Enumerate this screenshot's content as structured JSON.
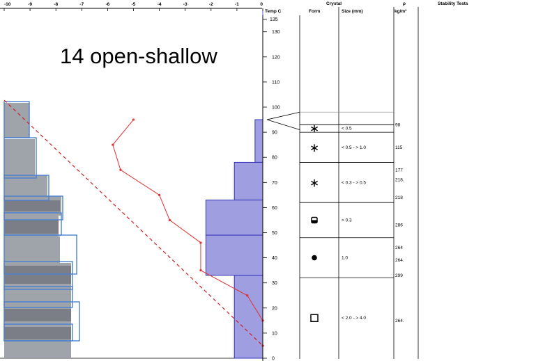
{
  "chart_data": {
    "type": "snow-profile",
    "title": "14 open-shallow",
    "temp_axis": {
      "ticks": [
        "-10",
        "-9",
        "-8",
        "-7",
        "-6",
        "-5",
        "-4",
        "-3",
        "-2",
        "-1",
        "0"
      ],
      "range": [
        -10,
        0
      ]
    },
    "height_axis": {
      "label": "Temp C",
      "ticks": [
        "0",
        "10",
        "20",
        "30",
        "40",
        "50",
        "60",
        "70",
        "80",
        "90",
        "100",
        "110",
        "120",
        "130",
        "135"
      ],
      "range": [
        0,
        137
      ]
    },
    "temperature_profile": [
      {
        "temp": -5.0,
        "height": 95
      },
      {
        "temp": -5.8,
        "height": 85
      },
      {
        "temp": -5.5,
        "height": 75
      },
      {
        "temp": -4.0,
        "height": 65
      },
      {
        "temp": -3.6,
        "height": 55
      },
      {
        "temp": -2.4,
        "height": 46
      },
      {
        "temp": -2.4,
        "height": 35
      },
      {
        "temp": -0.6,
        "height": 25
      },
      {
        "temp": 0.0,
        "height": 15
      },
      {
        "temp": 0.0,
        "height": 5
      }
    ],
    "hardness_layers": [
      {
        "top": 95,
        "bottom": 78,
        "hardness": -0.3
      },
      {
        "top": 78,
        "bottom": 63,
        "hardness": -1.1
      },
      {
        "top": 63,
        "bottom": 49,
        "hardness": -2.2
      },
      {
        "top": 49,
        "bottom": 33,
        "hardness": -2.2
      },
      {
        "top": 33,
        "bottom": 0,
        "hardness": -1.1
      }
    ],
    "density_column": {
      "header_symbol": "ρ",
      "header_unit": "kg/m³",
      "entries": [
        {
          "value": "98",
          "height": 93
        },
        {
          "value": "115",
          "height": 84
        },
        {
          "value": "177",
          "height": 75
        },
        {
          "value": "218.",
          "height": 71
        },
        {
          "value": "218",
          "height": 64
        },
        {
          "value": "286",
          "height": 53
        },
        {
          "value": "264",
          "height": 44
        },
        {
          "value": "264.",
          "height": 39
        },
        {
          "value": "299",
          "height": 33
        },
        {
          "value": "264.",
          "height": 15
        }
      ]
    },
    "crystal_table": {
      "header": "Crystal",
      "columns": [
        "Form",
        "Size (mm)"
      ],
      "layers": [
        {
          "top": 95,
          "bottom": 93,
          "form": "",
          "size": ""
        },
        {
          "top": 93,
          "bottom": 90,
          "form": "new-snow",
          "size": "< 0.5"
        },
        {
          "top": 90,
          "bottom": 78,
          "form": "new-snow",
          "size": "< 0.5 - > 1.0"
        },
        {
          "top": 78,
          "bottom": 62,
          "form": "new-snow",
          "size": "< 0.3 - > 0.5"
        },
        {
          "top": 62,
          "bottom": 48,
          "form": "faceted-rounded",
          "size": "> 0.3"
        },
        {
          "top": 48,
          "bottom": 32,
          "form": "rounded",
          "size": "1.0"
        },
        {
          "top": 32,
          "bottom": 0,
          "form": "faceted",
          "size": "< 2.0 - > 4.0"
        }
      ]
    },
    "stability_header": "Stability Tests",
    "colors": {
      "temperature": "#e03030",
      "hardness_fill": "#9e9ee0",
      "hardness_stroke": "#3333bb",
      "overlay_grey": "#9a9ea5",
      "overlay_stroke": "#4a80d0"
    }
  }
}
